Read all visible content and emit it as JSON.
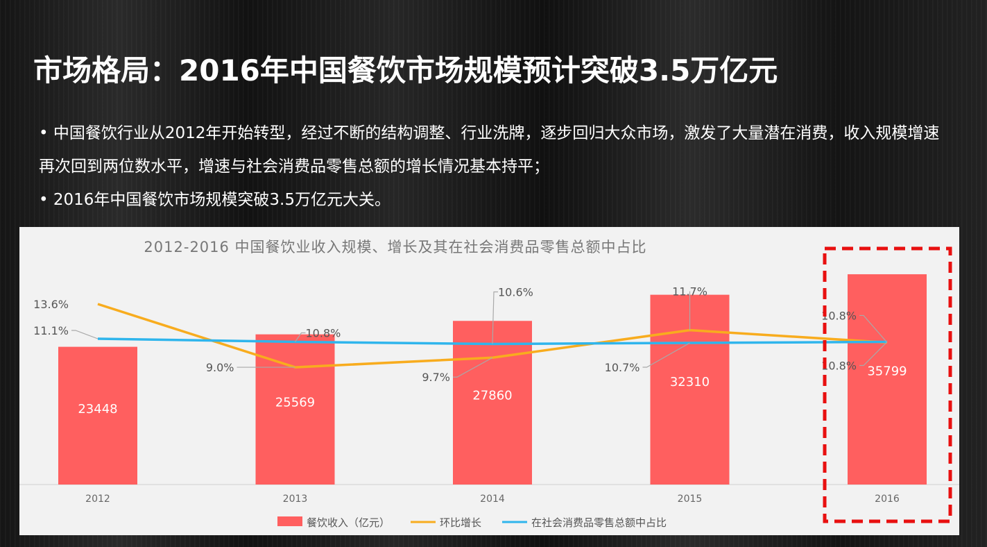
{
  "title": "市场格局：2016年中国餐饮市场规模预计突破3.5万亿元",
  "bullets": [
    "中国餐饮行业从2012年开始转型，经过不断的结构调整、行业洗牌，逐步回归大众市场，激发了大量潜在消费，收入规模增速再次回到两位数水平，增速与社会消费品零售总额的增长情况基本持平；",
    "2016年中国餐饮市场规模突破3.5万亿元大关。"
  ],
  "chart_data": {
    "type": "bar",
    "title": "2012-2016 中国餐饮业收入规模、增长及其在社会消费品零售总额中占比",
    "categories": [
      "2012",
      "2013",
      "2014",
      "2015",
      "2016"
    ],
    "series": [
      {
        "name": "餐饮收入（亿元）",
        "kind": "bar",
        "color": "#ff5f5f",
        "values": [
          23448,
          25569,
          27860,
          32310,
          35799
        ],
        "labels": [
          "23448",
          "25569",
          "27860",
          "32310",
          "35799"
        ]
      },
      {
        "name": "环比增长",
        "kind": "line",
        "color": "#f8ac1e",
        "values": [
          13.6,
          9.0,
          9.7,
          11.7,
          10.8
        ],
        "labels": [
          "13.6%",
          "9.0%",
          "9.7%",
          "11.7%",
          "10.8%"
        ]
      },
      {
        "name": "在社会消费品零售总额中占比",
        "kind": "line",
        "color": "#2fb5ec",
        "values": [
          11.1,
          10.8,
          10.6,
          10.7,
          10.8
        ],
        "labels": [
          "11.1%",
          "10.8%",
          "10.6%",
          "10.7%",
          "10.8%"
        ]
      }
    ],
    "highlight": {
      "category": "2016",
      "style": "dashed",
      "color": "#e81010"
    },
    "legend_position": "bottom",
    "grid": false
  }
}
